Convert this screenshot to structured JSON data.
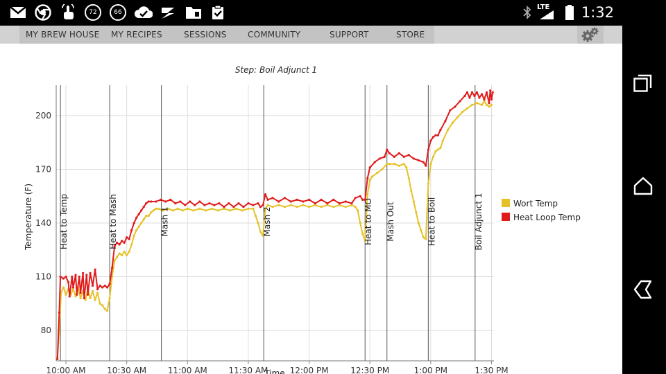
{
  "status_bar": {
    "time": "1:32",
    "network": "LTE",
    "icons": [
      "gmail-icon",
      "chrome-icon",
      "touch-icon",
      "badge-72-icon",
      "badge-66-icon",
      "check-cloud-icon",
      "flash-icon",
      "folder-icon",
      "clipboard-check-icon",
      "bluetooth-icon",
      "signal-icon",
      "battery-icon"
    ],
    "badge_a": "72",
    "badge_b": "66"
  },
  "nav": {
    "items": [
      {
        "label": "MY BREW HOUSE"
      },
      {
        "label": "MY RECIPES"
      },
      {
        "label": "SESSIONS"
      },
      {
        "label": "COMMUNITY"
      },
      {
        "label": "SUPPORT"
      },
      {
        "label": "STORE"
      }
    ],
    "settings_icon": "gear-icon"
  },
  "android_nav": {
    "icons": [
      "recent-apps-icon",
      "home-icon",
      "back-icon"
    ]
  },
  "chart_data": {
    "type": "line",
    "title": "Step: Boil Adjunct 1",
    "xlabel": "Time",
    "ylabel": "Temperature (F)",
    "ylim": [
      63,
      217
    ],
    "y_ticks": [
      80,
      110,
      140,
      170,
      200
    ],
    "x_ticks": [
      {
        "label": "10:00 AM",
        "t": 10.0
      },
      {
        "label": "10:30 AM",
        "t": 10.5
      },
      {
        "label": "11:00 AM",
        "t": 11.0
      },
      {
        "label": "11:30 AM",
        "t": 11.5
      },
      {
        "label": "12:00 PM",
        "t": 12.0
      },
      {
        "label": "12:30 PM",
        "t": 12.5
      },
      {
        "label": "1:00 PM",
        "t": 13.0
      },
      {
        "label": "1:30 PM",
        "t": 13.5
      }
    ],
    "xlim": [
      9.92,
      13.52
    ],
    "grid": true,
    "legend_position": "right",
    "steps": [
      {
        "label": "Heat to Temp",
        "t": 9.955
      },
      {
        "label": "Heat to Mash",
        "t": 10.36
      },
      {
        "label": "Mash 1",
        "t": 10.785
      },
      {
        "label": "Mash 2",
        "t": 11.627
      },
      {
        "label": "Heat to MO",
        "t": 12.46
      },
      {
        "label": "Mash Out",
        "t": 12.64
      },
      {
        "label": "Heat to Boil",
        "t": 12.98
      },
      {
        "label": "Boil Adjunct 1",
        "t": 13.365
      }
    ],
    "series": [
      {
        "name": "Wort Temp",
        "color": "#e6c229",
        "points": [
          [
            9.93,
            65
          ],
          [
            9.945,
            80
          ],
          [
            9.96,
            101
          ],
          [
            9.98,
            104
          ],
          [
            10.0,
            100
          ],
          [
            10.02,
            103
          ],
          [
            10.04,
            100
          ],
          [
            10.06,
            103
          ],
          [
            10.08,
            99
          ],
          [
            10.1,
            104
          ],
          [
            10.12,
            98
          ],
          [
            10.14,
            102
          ],
          [
            10.16,
            97
          ],
          [
            10.18,
            103
          ],
          [
            10.2,
            98
          ],
          [
            10.22,
            102
          ],
          [
            10.24,
            97
          ],
          [
            10.26,
            101
          ],
          [
            10.28,
            95
          ],
          [
            10.3,
            94
          ],
          [
            10.32,
            92
          ],
          [
            10.34,
            91
          ],
          [
            10.36,
            98
          ],
          [
            10.38,
            110
          ],
          [
            10.4,
            119
          ],
          [
            10.42,
            121
          ],
          [
            10.44,
            123
          ],
          [
            10.46,
            122
          ],
          [
            10.48,
            124
          ],
          [
            10.5,
            122
          ],
          [
            10.52,
            124
          ],
          [
            10.54,
            128
          ],
          [
            10.56,
            133
          ],
          [
            10.58,
            136
          ],
          [
            10.6,
            138
          ],
          [
            10.62,
            140
          ],
          [
            10.64,
            142
          ],
          [
            10.66,
            144
          ],
          [
            10.68,
            144
          ],
          [
            10.7,
            146
          ],
          [
            10.72,
            147
          ],
          [
            10.74,
            148
          ],
          [
            10.76,
            148
          ],
          [
            10.8,
            147
          ],
          [
            10.84,
            148
          ],
          [
            10.88,
            147
          ],
          [
            10.92,
            148
          ],
          [
            10.96,
            147
          ],
          [
            11.0,
            148
          ],
          [
            11.05,
            147
          ],
          [
            11.1,
            148
          ],
          [
            11.15,
            147
          ],
          [
            11.2,
            148
          ],
          [
            11.25,
            147
          ],
          [
            11.3,
            148
          ],
          [
            11.35,
            147
          ],
          [
            11.4,
            148
          ],
          [
            11.45,
            147
          ],
          [
            11.5,
            148
          ],
          [
            11.54,
            148
          ],
          [
            11.56,
            144
          ],
          [
            11.58,
            140
          ],
          [
            11.6,
            135
          ],
          [
            11.62,
            133
          ],
          [
            11.64,
            148
          ],
          [
            11.66,
            150
          ],
          [
            11.7,
            149
          ],
          [
            11.75,
            150
          ],
          [
            11.8,
            149
          ],
          [
            11.85,
            150
          ],
          [
            11.9,
            149
          ],
          [
            11.95,
            150
          ],
          [
            12.0,
            149
          ],
          [
            12.05,
            150
          ],
          [
            12.1,
            149
          ],
          [
            12.15,
            150
          ],
          [
            12.2,
            149
          ],
          [
            12.25,
            150
          ],
          [
            12.3,
            149
          ],
          [
            12.35,
            150
          ],
          [
            12.38,
            149
          ],
          [
            12.4,
            147
          ],
          [
            12.42,
            140
          ],
          [
            12.44,
            134
          ],
          [
            12.46,
            130
          ],
          [
            12.48,
            156
          ],
          [
            12.5,
            164
          ],
          [
            12.52,
            166
          ],
          [
            12.56,
            168
          ],
          [
            12.6,
            170
          ],
          [
            12.64,
            173
          ],
          [
            12.66,
            173
          ],
          [
            12.7,
            173
          ],
          [
            12.74,
            172
          ],
          [
            12.78,
            173
          ],
          [
            12.8,
            171
          ],
          [
            12.82,
            165
          ],
          [
            12.84,
            158
          ],
          [
            12.86,
            152
          ],
          [
            12.88,
            146
          ],
          [
            12.9,
            140
          ],
          [
            12.92,
            136
          ],
          [
            12.94,
            132
          ],
          [
            12.96,
            131
          ],
          [
            12.98,
            162
          ],
          [
            13.0,
            173
          ],
          [
            13.02,
            177
          ],
          [
            13.04,
            180
          ],
          [
            13.06,
            181
          ],
          [
            13.08,
            182
          ],
          [
            13.1,
            186
          ],
          [
            13.14,
            192
          ],
          [
            13.18,
            196
          ],
          [
            13.22,
            199
          ],
          [
            13.26,
            202
          ],
          [
            13.3,
            204
          ],
          [
            13.34,
            206
          ],
          [
            13.38,
            207
          ],
          [
            13.42,
            206
          ],
          [
            13.44,
            208
          ],
          [
            13.46,
            206
          ],
          [
            13.48,
            205
          ],
          [
            13.5,
            206
          ]
        ]
      },
      {
        "name": "Heat Loop Temp",
        "color": "#e01b1b",
        "points": [
          [
            9.93,
            64
          ],
          [
            9.945,
            90
          ],
          [
            9.955,
            110
          ],
          [
            9.98,
            109
          ],
          [
            10.0,
            110
          ],
          [
            10.02,
            107
          ],
          [
            10.03,
            99
          ],
          [
            10.05,
            110
          ],
          [
            10.06,
            104
          ],
          [
            10.08,
            111
          ],
          [
            10.09,
            100
          ],
          [
            10.11,
            110
          ],
          [
            10.12,
            101
          ],
          [
            10.14,
            112
          ],
          [
            10.15,
            98
          ],
          [
            10.17,
            111
          ],
          [
            10.18,
            100
          ],
          [
            10.2,
            112
          ],
          [
            10.22,
            105
          ],
          [
            10.24,
            114
          ],
          [
            10.26,
            103
          ],
          [
            10.28,
            105
          ],
          [
            10.3,
            104
          ],
          [
            10.32,
            105
          ],
          [
            10.34,
            104
          ],
          [
            10.36,
            106
          ],
          [
            10.38,
            115
          ],
          [
            10.4,
            127
          ],
          [
            10.42,
            129
          ],
          [
            10.44,
            128
          ],
          [
            10.46,
            130
          ],
          [
            10.48,
            129
          ],
          [
            10.5,
            132
          ],
          [
            10.52,
            131
          ],
          [
            10.54,
            136
          ],
          [
            10.56,
            140
          ],
          [
            10.58,
            143
          ],
          [
            10.6,
            145
          ],
          [
            10.62,
            147
          ],
          [
            10.64,
            149
          ],
          [
            10.66,
            151
          ],
          [
            10.68,
            152
          ],
          [
            10.7,
            152
          ],
          [
            10.74,
            152
          ],
          [
            10.78,
            153
          ],
          [
            10.82,
            152
          ],
          [
            10.86,
            153
          ],
          [
            10.9,
            151
          ],
          [
            10.94,
            152
          ],
          [
            10.98,
            150
          ],
          [
            11.02,
            152
          ],
          [
            11.06,
            150
          ],
          [
            11.1,
            152
          ],
          [
            11.14,
            150
          ],
          [
            11.18,
            151
          ],
          [
            11.22,
            150
          ],
          [
            11.26,
            151
          ],
          [
            11.3,
            149
          ],
          [
            11.34,
            151
          ],
          [
            11.38,
            149
          ],
          [
            11.42,
            151
          ],
          [
            11.46,
            149
          ],
          [
            11.5,
            151
          ],
          [
            11.54,
            150
          ],
          [
            11.58,
            151
          ],
          [
            11.6,
            149
          ],
          [
            11.62,
            150
          ],
          [
            11.64,
            156
          ],
          [
            11.66,
            153
          ],
          [
            11.7,
            154
          ],
          [
            11.75,
            152
          ],
          [
            11.8,
            154
          ],
          [
            11.85,
            152
          ],
          [
            11.9,
            153
          ],
          [
            11.95,
            152
          ],
          [
            12.0,
            153
          ],
          [
            12.05,
            151
          ],
          [
            12.1,
            153
          ],
          [
            12.15,
            151
          ],
          [
            12.2,
            153
          ],
          [
            12.25,
            151
          ],
          [
            12.3,
            152
          ],
          [
            12.35,
            151
          ],
          [
            12.38,
            154
          ],
          [
            12.42,
            155
          ],
          [
            12.44,
            153
          ],
          [
            12.46,
            153
          ],
          [
            12.48,
            165
          ],
          [
            12.5,
            171
          ],
          [
            12.54,
            174
          ],
          [
            12.58,
            176
          ],
          [
            12.62,
            177
          ],
          [
            12.64,
            181
          ],
          [
            12.66,
            179
          ],
          [
            12.7,
            177
          ],
          [
            12.74,
            179
          ],
          [
            12.78,
            177
          ],
          [
            12.82,
            178
          ],
          [
            12.86,
            176
          ],
          [
            12.9,
            175
          ],
          [
            12.94,
            174
          ],
          [
            12.96,
            172
          ],
          [
            12.98,
            181
          ],
          [
            13.0,
            186
          ],
          [
            13.02,
            188
          ],
          [
            13.04,
            189
          ],
          [
            13.06,
            189
          ],
          [
            13.08,
            192
          ],
          [
            13.12,
            197
          ],
          [
            13.16,
            203
          ],
          [
            13.2,
            205
          ],
          [
            13.24,
            208
          ],
          [
            13.28,
            211
          ],
          [
            13.3,
            213
          ],
          [
            13.32,
            210
          ],
          [
            13.34,
            213
          ],
          [
            13.36,
            211
          ],
          [
            13.38,
            213
          ],
          [
            13.4,
            210
          ],
          [
            13.42,
            212
          ],
          [
            13.44,
            209
          ],
          [
            13.46,
            213
          ],
          [
            13.48,
            207
          ],
          [
            13.49,
            214
          ],
          [
            13.5,
            209
          ],
          [
            13.51,
            213
          ]
        ]
      }
    ]
  }
}
